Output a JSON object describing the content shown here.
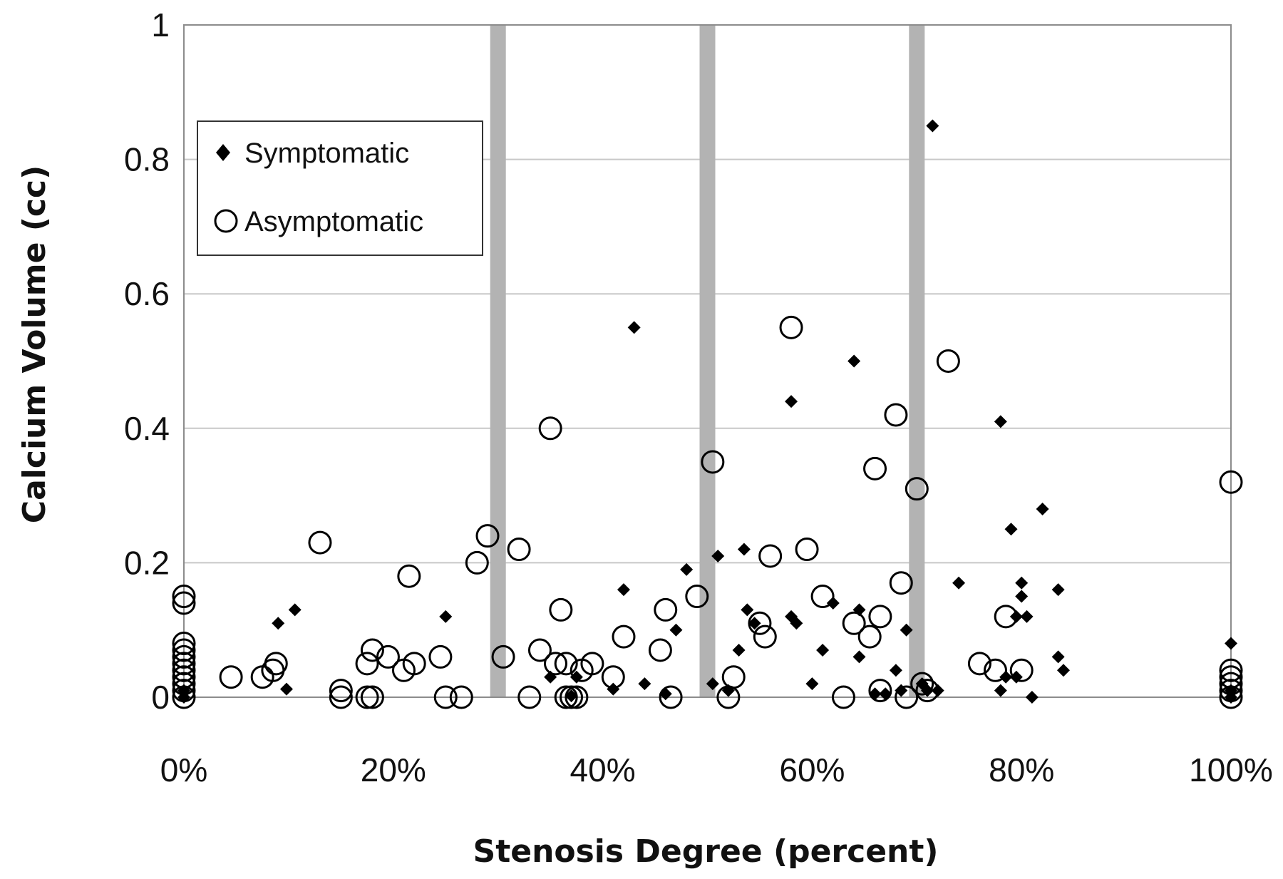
{
  "chart_data": {
    "type": "scatter",
    "xlabel": "Stenosis Degree (percent)",
    "ylabel": "Calcium Volume (cc)",
    "xlim": [
      0,
      100
    ],
    "ylim": [
      0,
      1
    ],
    "x_ticks": [
      "0%",
      "20%",
      "40%",
      "60%",
      "80%",
      "100%"
    ],
    "y_ticks": [
      "0",
      "0.2",
      "0.4",
      "0.6",
      "0.8",
      "1"
    ],
    "grid": "horizontal",
    "legend_position": "top-left",
    "threshold_bars_x": [
      30,
      50,
      70
    ],
    "threshold_bar_color": "#b3b3b3",
    "series": [
      {
        "name": "Symptomatic",
        "marker": "diamond-filled",
        "color": "#000000",
        "points": [
          [
            0,
            0.01
          ],
          [
            0,
            0.0
          ],
          [
            9,
            0.11
          ],
          [
            9.8,
            0.012
          ],
          [
            10.6,
            0.13
          ],
          [
            25,
            0.12
          ],
          [
            35,
            0.03
          ],
          [
            37,
            0.002
          ],
          [
            37.5,
            0.03
          ],
          [
            41,
            0.012
          ],
          [
            42,
            0.16
          ],
          [
            43,
            0.55
          ],
          [
            44,
            0.02
          ],
          [
            46,
            0.005
          ],
          [
            47,
            0.1
          ],
          [
            48,
            0.19
          ],
          [
            50.5,
            0.02
          ],
          [
            51,
            0.21
          ],
          [
            52,
            0.01
          ],
          [
            53,
            0.07
          ],
          [
            53.5,
            0.22
          ],
          [
            53.8,
            0.13
          ],
          [
            54.5,
            0.11
          ],
          [
            58,
            0.44
          ],
          [
            58,
            0.12
          ],
          [
            58.5,
            0.11
          ],
          [
            60,
            0.02
          ],
          [
            61,
            0.07
          ],
          [
            62,
            0.14
          ],
          [
            64,
            0.5
          ],
          [
            64.5,
            0.13
          ],
          [
            64.5,
            0.06
          ],
          [
            66,
            0.005
          ],
          [
            67,
            0.005
          ],
          [
            68,
            0.04
          ],
          [
            68.5,
            0.01
          ],
          [
            69,
            0.1
          ],
          [
            70.5,
            0.02
          ],
          [
            71,
            0.01
          ],
          [
            71.5,
            0.85
          ],
          [
            72,
            0.01
          ],
          [
            74,
            0.17
          ],
          [
            78,
            0.41
          ],
          [
            78,
            0.01
          ],
          [
            78.5,
            0.03
          ],
          [
            79,
            0.25
          ],
          [
            79.5,
            0.03
          ],
          [
            79.5,
            0.12
          ],
          [
            80,
            0.17
          ],
          [
            80,
            0.15
          ],
          [
            80.5,
            0.12
          ],
          [
            81,
            0.0
          ],
          [
            82,
            0.28
          ],
          [
            83.5,
            0.16
          ],
          [
            83.5,
            0.06
          ],
          [
            84,
            0.04
          ],
          [
            100,
            0.08
          ],
          [
            100,
            0.01
          ],
          [
            100,
            0.0
          ]
        ]
      },
      {
        "name": "Asymptomatic",
        "marker": "circle-open",
        "color": "#000000",
        "points": [
          [
            0,
            0.15
          ],
          [
            0,
            0.14
          ],
          [
            0,
            0.08
          ],
          [
            0,
            0.07
          ],
          [
            0,
            0.06
          ],
          [
            0,
            0.05
          ],
          [
            0,
            0.04
          ],
          [
            0,
            0.03
          ],
          [
            0,
            0.02
          ],
          [
            0,
            0.01
          ],
          [
            0,
            0.0
          ],
          [
            4.5,
            0.03
          ],
          [
            7.5,
            0.03
          ],
          [
            8.5,
            0.04
          ],
          [
            8.8,
            0.05
          ],
          [
            13,
            0.23
          ],
          [
            15,
            0.01
          ],
          [
            15,
            0.0
          ],
          [
            17.5,
            0.05
          ],
          [
            17.5,
            0.0
          ],
          [
            18,
            0.07
          ],
          [
            18,
            0.0
          ],
          [
            19.5,
            0.06
          ],
          [
            21,
            0.04
          ],
          [
            21.5,
            0.18
          ],
          [
            22,
            0.05
          ],
          [
            24.5,
            0.06
          ],
          [
            25,
            0.0
          ],
          [
            26.5,
            0.0
          ],
          [
            28,
            0.2
          ],
          [
            29,
            0.24
          ],
          [
            30.5,
            0.06
          ],
          [
            32,
            0.22
          ],
          [
            33,
            0.0
          ],
          [
            34,
            0.07
          ],
          [
            35,
            0.4
          ],
          [
            35.5,
            0.05
          ],
          [
            36,
            0.13
          ],
          [
            36.5,
            0.05
          ],
          [
            36.5,
            0.0
          ],
          [
            37,
            0.0
          ],
          [
            37.5,
            0.0
          ],
          [
            38,
            0.04
          ],
          [
            39,
            0.05
          ],
          [
            41,
            0.03
          ],
          [
            42,
            0.09
          ],
          [
            45.5,
            0.07
          ],
          [
            46,
            0.13
          ],
          [
            46.5,
            0.0
          ],
          [
            49,
            0.15
          ],
          [
            50.5,
            0.35
          ],
          [
            52,
            0.0
          ],
          [
            52.5,
            0.03
          ],
          [
            55,
            0.11
          ],
          [
            55.5,
            0.09
          ],
          [
            56,
            0.21
          ],
          [
            58,
            0.55
          ],
          [
            59.5,
            0.22
          ],
          [
            61,
            0.15
          ],
          [
            63,
            0.0
          ],
          [
            64,
            0.11
          ],
          [
            65.5,
            0.09
          ],
          [
            66,
            0.34
          ],
          [
            66.5,
            0.12
          ],
          [
            66.5,
            0.01
          ],
          [
            68,
            0.42
          ],
          [
            68.5,
            0.17
          ],
          [
            69,
            0.0
          ],
          [
            70,
            0.31
          ],
          [
            70.5,
            0.02
          ],
          [
            71,
            0.01
          ],
          [
            73,
            0.5
          ],
          [
            76,
            0.05
          ],
          [
            77.5,
            0.04
          ],
          [
            78.5,
            0.12
          ],
          [
            80,
            0.04
          ],
          [
            100,
            0.32
          ],
          [
            100,
            0.04
          ],
          [
            100,
            0.03
          ],
          [
            100,
            0.02
          ],
          [
            100,
            0.01
          ],
          [
            100,
            0.0
          ]
        ]
      }
    ]
  }
}
